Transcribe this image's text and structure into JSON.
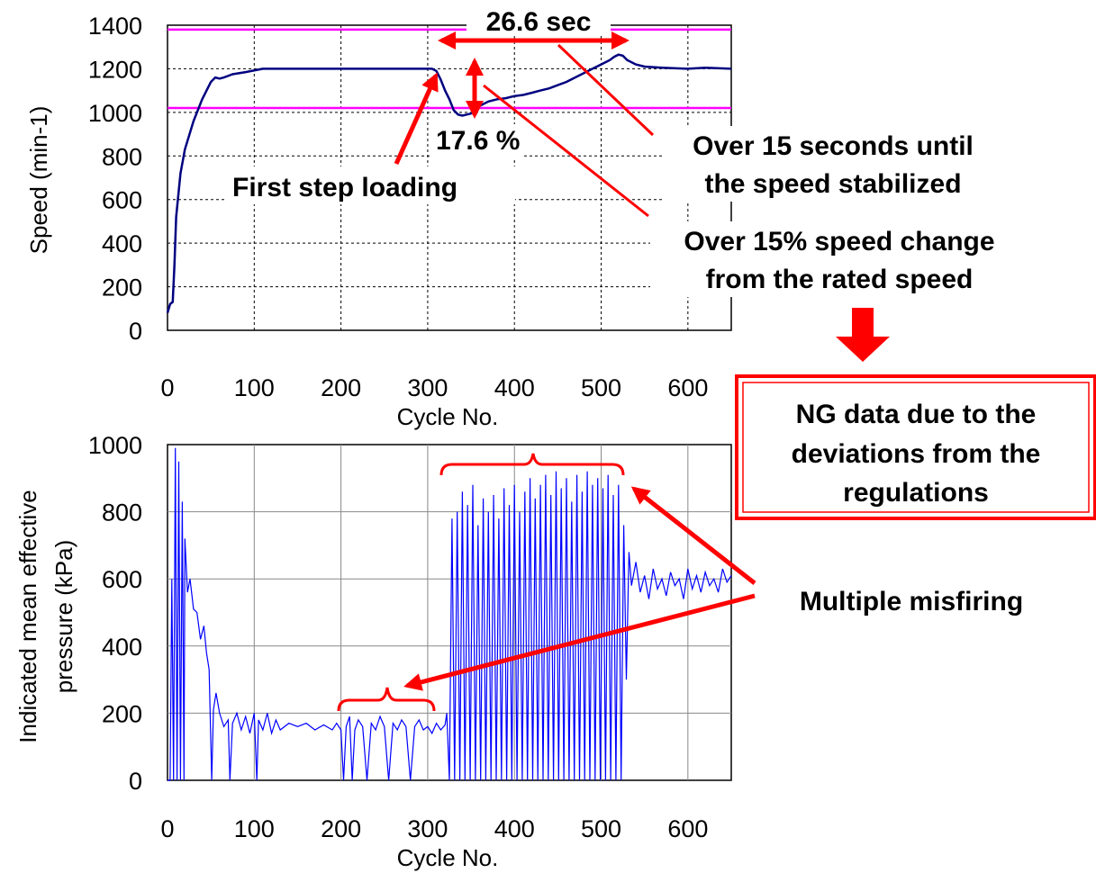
{
  "chart_data": [
    {
      "type": "line",
      "xlabel": "Cycle No.",
      "ylabel": "Speed (min-1)",
      "xlim": [
        0,
        650
      ],
      "ylim": [
        0,
        1400
      ],
      "xticks": [
        0,
        100,
        200,
        300,
        400,
        500,
        600
      ],
      "yticks": [
        0,
        200,
        400,
        600,
        800,
        1000,
        1200,
        1400
      ],
      "grid": "dotted",
      "reference_lines": {
        "color": "#ff00ff",
        "values": [
          1380,
          1020
        ]
      },
      "series": [
        {
          "color": "#000080",
          "points": [
            [
              0,
              80
            ],
            [
              3,
              120
            ],
            [
              6,
              130
            ],
            [
              8,
              300
            ],
            [
              10,
              520
            ],
            [
              15,
              720
            ],
            [
              20,
              830
            ],
            [
              30,
              960
            ],
            [
              40,
              1060
            ],
            [
              50,
              1140
            ],
            [
              55,
              1160
            ],
            [
              60,
              1155
            ],
            [
              65,
              1160
            ],
            [
              75,
              1175
            ],
            [
              90,
              1185
            ],
            [
              110,
              1200
            ],
            [
              150,
              1200
            ],
            [
              200,
              1200
            ],
            [
              250,
              1200
            ],
            [
              305,
              1200
            ],
            [
              310,
              1190
            ],
            [
              315,
              1150
            ],
            [
              320,
              1100
            ],
            [
              325,
              1060
            ],
            [
              330,
              1010
            ],
            [
              335,
              990
            ],
            [
              340,
              985
            ],
            [
              345,
              990
            ],
            [
              350,
              995
            ],
            [
              355,
              1010
            ],
            [
              360,
              1030
            ],
            [
              370,
              1050
            ],
            [
              380,
              1060
            ],
            [
              390,
              1065
            ],
            [
              400,
              1075
            ],
            [
              410,
              1080
            ],
            [
              420,
              1090
            ],
            [
              430,
              1100
            ],
            [
              440,
              1110
            ],
            [
              450,
              1125
            ],
            [
              460,
              1140
            ],
            [
              470,
              1160
            ],
            [
              480,
              1180
            ],
            [
              490,
              1200
            ],
            [
              500,
              1220
            ],
            [
              510,
              1240
            ],
            [
              515,
              1255
            ],
            [
              520,
              1265
            ],
            [
              525,
              1260
            ],
            [
              530,
              1240
            ],
            [
              540,
              1220
            ],
            [
              550,
              1210
            ],
            [
              570,
              1205
            ],
            [
              600,
              1200
            ],
            [
              620,
              1205
            ],
            [
              650,
              1200
            ]
          ]
        }
      ],
      "annotations": {
        "duration": "26.6 sec",
        "dip": "17.6 %",
        "first_step": "First step loading",
        "note1_line1": "Over 15 seconds until",
        "note1_line2": "the speed stabilized",
        "note2_line1": "Over 15% speed change",
        "note2_line2": "from the rated speed"
      }
    },
    {
      "type": "line",
      "xlabel": "Cycle No.",
      "ylabel_line1": "Indicated mean effective",
      "ylabel_line2": "pressure (kPa)",
      "xlim": [
        0,
        650
      ],
      "ylim": [
        0,
        1000
      ],
      "xticks": [
        0,
        100,
        200,
        300,
        400,
        500,
        600
      ],
      "yticks": [
        0,
        200,
        400,
        600,
        800,
        1000
      ],
      "grid": "solid",
      "series": [
        {
          "color": "#0000ff",
          "points": [
            [
              0,
              0
            ],
            [
              3,
              0
            ],
            [
              5,
              600
            ],
            [
              7,
              0
            ],
            [
              9,
              990
            ],
            [
              11,
              0
            ],
            [
              13,
              950
            ],
            [
              15,
              0
            ],
            [
              17,
              830
            ],
            [
              19,
              0
            ],
            [
              20,
              720
            ],
            [
              23,
              560
            ],
            [
              26,
              600
            ],
            [
              30,
              510
            ],
            [
              34,
              500
            ],
            [
              38,
              420
            ],
            [
              42,
              460
            ],
            [
              45,
              380
            ],
            [
              48,
              330
            ],
            [
              51,
              0
            ],
            [
              53,
              210
            ],
            [
              56,
              260
            ],
            [
              60,
              200
            ],
            [
              65,
              160
            ],
            [
              70,
              180
            ],
            [
              72,
              0
            ],
            [
              75,
              170
            ],
            [
              80,
              200
            ],
            [
              85,
              150
            ],
            [
              90,
              190
            ],
            [
              95,
              140
            ],
            [
              100,
              200
            ],
            [
              103,
              0
            ],
            [
              105,
              180
            ],
            [
              110,
              150
            ],
            [
              115,
              200
            ],
            [
              120,
              140
            ],
            [
              125,
              180
            ],
            [
              130,
              150
            ],
            [
              140,
              170
            ],
            [
              150,
              160
            ],
            [
              160,
              170
            ],
            [
              170,
              150
            ],
            [
              180,
              165
            ],
            [
              190,
              150
            ],
            [
              195,
              170
            ],
            [
              200,
              150
            ],
            [
              203,
              0
            ],
            [
              206,
              160
            ],
            [
              210,
              190
            ],
            [
              213,
              0
            ],
            [
              216,
              150
            ],
            [
              220,
              180
            ],
            [
              225,
              160
            ],
            [
              230,
              0
            ],
            [
              235,
              170
            ],
            [
              240,
              150
            ],
            [
              245,
              190
            ],
            [
              250,
              160
            ],
            [
              255,
              0
            ],
            [
              260,
              170
            ],
            [
              265,
              150
            ],
            [
              270,
              180
            ],
            [
              275,
              160
            ],
            [
              280,
              0
            ],
            [
              285,
              160
            ],
            [
              290,
              180
            ],
            [
              295,
              150
            ],
            [
              300,
              160
            ],
            [
              305,
              140
            ],
            [
              310,
              170
            ],
            [
              315,
              150
            ],
            [
              320,
              165
            ],
            [
              322,
              200
            ],
            [
              325,
              0
            ],
            [
              328,
              780
            ],
            [
              331,
              0
            ],
            [
              334,
              800
            ],
            [
              337,
              0
            ],
            [
              340,
              860
            ],
            [
              343,
              0
            ],
            [
              346,
              820
            ],
            [
              349,
              0
            ],
            [
              352,
              880
            ],
            [
              355,
              0
            ],
            [
              358,
              760
            ],
            [
              361,
              0
            ],
            [
              364,
              840
            ],
            [
              367,
              0
            ],
            [
              370,
              800
            ],
            [
              373,
              0
            ],
            [
              376,
              850
            ],
            [
              379,
              0
            ],
            [
              382,
              780
            ],
            [
              385,
              0
            ],
            [
              388,
              870
            ],
            [
              391,
              0
            ],
            [
              394,
              820
            ],
            [
              397,
              0
            ],
            [
              400,
              880
            ],
            [
              403,
              0
            ],
            [
              406,
              800
            ],
            [
              409,
              0
            ],
            [
              412,
              860
            ],
            [
              415,
              0
            ],
            [
              418,
              900
            ],
            [
              421,
              0
            ],
            [
              424,
              840
            ],
            [
              427,
              0
            ],
            [
              430,
              880
            ],
            [
              433,
              0
            ],
            [
              436,
              910
            ],
            [
              439,
              0
            ],
            [
              442,
              850
            ],
            [
              445,
              0
            ],
            [
              448,
              920
            ],
            [
              451,
              0
            ],
            [
              454,
              870
            ],
            [
              457,
              0
            ],
            [
              460,
              900
            ],
            [
              463,
              0
            ],
            [
              466,
              830
            ],
            [
              469,
              0
            ],
            [
              472,
              910
            ],
            [
              475,
              0
            ],
            [
              478,
              860
            ],
            [
              481,
              0
            ],
            [
              484,
              920
            ],
            [
              487,
              0
            ],
            [
              490,
              880
            ],
            [
              493,
              0
            ],
            [
              496,
              900
            ],
            [
              499,
              0
            ],
            [
              502,
              870
            ],
            [
              505,
              0
            ],
            [
              508,
              910
            ],
            [
              511,
              0
            ],
            [
              514,
              850
            ],
            [
              517,
              0
            ],
            [
              520,
              880
            ],
            [
              523,
              0
            ],
            [
              526,
              760
            ],
            [
              529,
              300
            ],
            [
              532,
              680
            ],
            [
              535,
              580
            ],
            [
              540,
              650
            ],
            [
              545,
              560
            ],
            [
              550,
              610
            ],
            [
              555,
              540
            ],
            [
              560,
              630
            ],
            [
              565,
              570
            ],
            [
              570,
              600
            ],
            [
              575,
              550
            ],
            [
              580,
              620
            ],
            [
              585,
              580
            ],
            [
              590,
              600
            ],
            [
              595,
              540
            ],
            [
              600,
              630
            ],
            [
              605,
              570
            ],
            [
              610,
              610
            ],
            [
              615,
              560
            ],
            [
              620,
              620
            ],
            [
              625,
              580
            ],
            [
              630,
              600
            ],
            [
              635,
              560
            ],
            [
              640,
              630
            ],
            [
              645,
              590
            ],
            [
              650,
              610
            ]
          ]
        }
      ],
      "annotations": {
        "misfiring": "Multiple misfiring"
      }
    }
  ],
  "ng_box": {
    "line1": "NG data due to the",
    "line2": "deviations from the",
    "line3": "regulations"
  },
  "colors": {
    "annotation_red": "#ff0000",
    "ng_border": "#ff0000"
  }
}
